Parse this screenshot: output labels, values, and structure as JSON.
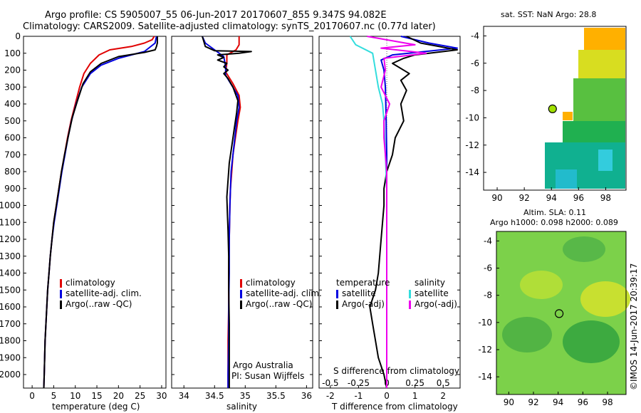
{
  "header": {
    "line1": "Argo profile: CS 5905007_55 06-Jun-2017 20170607_855 9.347S 94.082E",
    "line2": "Climatology: CARS2009. Satellite-adjusted climatology: synTS_20170607.nc (0.77d later)"
  },
  "legend_main": [
    "climatology",
    "satellite-adj. clim.",
    "Argo(..raw -QC)"
  ],
  "legend_diff": {
    "temperature_title": "temperature",
    "salinity_title": "salinity",
    "items": [
      "satellite",
      "Argo(-adj)"
    ]
  },
  "credits": {
    "line1": "Argo Australia",
    "line2": "PI: Susan Wijffels"
  },
  "diff_top_label": "S difference from climatology",
  "map_titles": {
    "sst": "sat. SST: NaN Argo: 28.8",
    "sla1": "Altim. SLA: 0.11",
    "sla2": "Argo h1000: 0.098 h2000: 0.089"
  },
  "watermark": "©IMOS 14-Jun-2017 20:39:17",
  "colors": {
    "climatology": "#e00000",
    "satellite": "#0000e0",
    "argo": "#000000",
    "satellite_diff_s": "#33dddd",
    "argo_diff_s": "#ee00ee"
  },
  "chart_data": [
    {
      "type": "line",
      "xlabel": "temperature (deg C)",
      "ylabel": "",
      "xlim": [
        -2,
        31
      ],
      "ylim": [
        2080,
        0
      ],
      "xticks": [
        0,
        5,
        10,
        15,
        20,
        25,
        30
      ],
      "yticks": [
        0,
        100,
        200,
        300,
        400,
        500,
        600,
        700,
        800,
        900,
        1000,
        1100,
        1200,
        1300,
        1400,
        1500,
        1600,
        1700,
        1800,
        1900,
        2000
      ],
      "series": [
        {
          "name": "climatology",
          "color": "#e00000",
          "points": [
            [
              28.3,
              0
            ],
            [
              27.8,
              20
            ],
            [
              26,
              40
            ],
            [
              23,
              60
            ],
            [
              18,
              80
            ],
            [
              15.5,
              110
            ],
            [
              13.5,
              160
            ],
            [
              12,
              220
            ],
            [
              11,
              300
            ],
            [
              10,
              400
            ],
            [
              9,
              500
            ],
            [
              8.2,
              600
            ],
            [
              7.5,
              700
            ],
            [
              6.8,
              800
            ],
            [
              6.2,
              900
            ],
            [
              5.6,
              1000
            ],
            [
              5,
              1100
            ],
            [
              4.6,
              1200
            ],
            [
              4.2,
              1300
            ],
            [
              3.9,
              1400
            ],
            [
              3.6,
              1500
            ],
            [
              3.4,
              1600
            ],
            [
              3.2,
              1700
            ],
            [
              3,
              1800
            ],
            [
              2.9,
              1900
            ],
            [
              2.8,
              2000
            ],
            [
              2.7,
              2080
            ]
          ]
        },
        {
          "name": "satellite-adj. clim.",
          "color": "#0000e0",
          "points": [
            [
              28.8,
              0
            ],
            [
              28.5,
              40
            ],
            [
              26,
              90
            ],
            [
              20,
              130
            ],
            [
              16,
              170
            ],
            [
              13.5,
              220
            ],
            [
              11.5,
              300
            ],
            [
              10.2,
              400
            ],
            [
              9.1,
              500
            ],
            [
              8.3,
              600
            ],
            [
              7.6,
              700
            ],
            [
              6.9,
              800
            ],
            [
              6.3,
              900
            ],
            [
              5.7,
              1000
            ],
            [
              5.1,
              1100
            ],
            [
              4.6,
              1200
            ],
            [
              4.2,
              1300
            ],
            [
              3.9,
              1400
            ],
            [
              3.6,
              1500
            ],
            [
              3.4,
              1600
            ],
            [
              3.2,
              1700
            ],
            [
              3,
              1800
            ],
            [
              2.9,
              1900
            ],
            [
              2.8,
              2000
            ],
            [
              2.7,
              2080
            ]
          ]
        },
        {
          "name": "Argo(..raw -QC)",
          "color": "#000000",
          "points": [
            [
              29,
              0
            ],
            [
              29,
              40
            ],
            [
              28.8,
              60
            ],
            [
              28.5,
              80
            ],
            [
              26,
              95
            ],
            [
              20,
              120
            ],
            [
              16,
              160
            ],
            [
              13.5,
              210
            ],
            [
              11.8,
              280
            ],
            [
              10.5,
              380
            ],
            [
              9.3,
              480
            ],
            [
              8.3,
              600
            ],
            [
              7.5,
              700
            ],
            [
              6.8,
              800
            ],
            [
              6.2,
              900
            ],
            [
              5.6,
              1000
            ],
            [
              5,
              1100
            ],
            [
              4.6,
              1200
            ],
            [
              4.2,
              1300
            ],
            [
              3.9,
              1400
            ],
            [
              3.6,
              1500
            ],
            [
              3.4,
              1600
            ],
            [
              3.2,
              1700
            ],
            [
              3,
              1800
            ],
            [
              2.9,
              1900
            ],
            [
              2.8,
              2000
            ],
            [
              2.7,
              2080
            ]
          ]
        }
      ]
    },
    {
      "type": "line",
      "xlabel": "salinity",
      "ylabel": "",
      "xlim": [
        33.8,
        36.1
      ],
      "ylim": [
        2080,
        0
      ],
      "xticks": [
        34,
        34.5,
        35,
        35.5,
        36
      ],
      "xticklabels": [
        "34",
        "34.5",
        "35",
        "35.5",
        "36"
      ],
      "series": [
        {
          "name": "climatology",
          "color": "#e00000",
          "points": [
            [
              34.9,
              0
            ],
            [
              34.9,
              50
            ],
            [
              34.85,
              80
            ],
            [
              34.7,
              110
            ],
            [
              34.7,
              160
            ],
            [
              34.68,
              210
            ],
            [
              34.8,
              280
            ],
            [
              34.9,
              350
            ],
            [
              34.92,
              420
            ],
            [
              34.88,
              500
            ],
            [
              34.84,
              600
            ],
            [
              34.8,
              700
            ],
            [
              34.78,
              800
            ],
            [
              34.76,
              900
            ],
            [
              34.75,
              1000
            ],
            [
              34.74,
              1200
            ],
            [
              34.73,
              1400
            ],
            [
              34.73,
              1600
            ],
            [
              34.72,
              1800
            ],
            [
              34.72,
              2000
            ],
            [
              34.72,
              2080
            ]
          ]
        },
        {
          "name": "satellite-adj. clim.",
          "color": "#0000e0",
          "points": [
            [
              34.3,
              0
            ],
            [
              34.35,
              40
            ],
            [
              34.5,
              80
            ],
            [
              34.65,
              120
            ],
            [
              34.68,
              180
            ],
            [
              34.68,
              230
            ],
            [
              34.78,
              290
            ],
            [
              34.88,
              350
            ],
            [
              34.9,
              420
            ],
            [
              34.86,
              500
            ],
            [
              34.83,
              600
            ],
            [
              34.8,
              700
            ],
            [
              34.77,
              800
            ],
            [
              34.76,
              900
            ],
            [
              34.75,
              1000
            ],
            [
              34.74,
              1200
            ],
            [
              34.74,
              1400
            ],
            [
              34.73,
              1600
            ],
            [
              34.73,
              1800
            ],
            [
              34.72,
              2000
            ],
            [
              34.72,
              2080
            ]
          ]
        },
        {
          "name": "Argo(..raw -QC)",
          "color": "#000000",
          "points": [
            [
              34.3,
              0
            ],
            [
              34.35,
              60
            ],
            [
              34.5,
              85
            ],
            [
              35.1,
              90
            ],
            [
              34.9,
              100
            ],
            [
              34.55,
              110
            ],
            [
              34.65,
              125
            ],
            [
              34.55,
              140
            ],
            [
              34.7,
              160
            ],
            [
              34.65,
              180
            ],
            [
              34.72,
              200
            ],
            [
              34.65,
              220
            ],
            [
              34.72,
              250
            ],
            [
              34.8,
              300
            ],
            [
              34.88,
              380
            ],
            [
              34.86,
              450
            ],
            [
              34.82,
              550
            ],
            [
              34.78,
              650
            ],
            [
              34.74,
              750
            ],
            [
              34.72,
              850
            ],
            [
              34.7,
              950
            ],
            [
              34.71,
              1050
            ],
            [
              34.72,
              1150
            ],
            [
              34.73,
              1300
            ],
            [
              34.73,
              1500
            ],
            [
              34.74,
              1700
            ],
            [
              34.74,
              1900
            ],
            [
              34.74,
              2080
            ]
          ]
        }
      ]
    },
    {
      "type": "line",
      "xlabel": "T difference from climatology",
      "ylabel": "",
      "xlim": [
        -2.4,
        2.6
      ],
      "ylim": [
        2080,
        0
      ],
      "xticks": [
        -2,
        -1,
        0,
        1,
        2
      ],
      "xticklabels_top": [
        "-0.5",
        "-0.25",
        "0",
        "0.25",
        "0.5"
      ],
      "series": [
        {
          "name": "temperature satellite",
          "color": "#0000e0",
          "points": [
            [
              0.5,
              0
            ],
            [
              1.5,
              40
            ],
            [
              2.5,
              70
            ],
            [
              0.2,
              110
            ],
            [
              -0.2,
              140
            ],
            [
              -0.1,
              200
            ],
            [
              -0.05,
              300
            ],
            [
              -0.02,
              500
            ],
            [
              0,
              700
            ],
            [
              0,
              900
            ],
            [
              0,
              1100
            ],
            [
              0,
              1300
            ],
            [
              0,
              1500
            ],
            [
              0,
              1700
            ],
            [
              0,
              1900
            ],
            [
              0,
              2080
            ]
          ]
        },
        {
          "name": "temperature Argo(-adj)",
          "color": "#000000",
          "points": [
            [
              0.7,
              0
            ],
            [
              1.2,
              40
            ],
            [
              2.5,
              80
            ],
            [
              1,
              110
            ],
            [
              0.6,
              130
            ],
            [
              0.2,
              160
            ],
            [
              0.8,
              220
            ],
            [
              0.5,
              260
            ],
            [
              0.7,
              320
            ],
            [
              0.5,
              400
            ],
            [
              0.6,
              500
            ],
            [
              0.3,
              600
            ],
            [
              0.2,
              700
            ],
            [
              0,
              800
            ],
            [
              -0.1,
              900
            ],
            [
              -0.1,
              1000
            ],
            [
              -0.2,
              1200
            ],
            [
              -0.3,
              1400
            ],
            [
              -0.4,
              1500
            ],
            [
              -0.6,
              1600
            ],
            [
              -0.5,
              1700
            ],
            [
              -0.4,
              1800
            ],
            [
              -0.3,
              1900
            ],
            [
              -0.1,
              2000
            ],
            [
              0,
              2080
            ]
          ]
        },
        {
          "name": "salinity satellite",
          "color": "#33dddd",
          "points": [
            [
              -1.3,
              0
            ],
            [
              -1.1,
              50
            ],
            [
              -0.5,
              100
            ],
            [
              -0.4,
              200
            ],
            [
              -0.3,
              300
            ],
            [
              -0.15,
              400
            ],
            [
              -0.1,
              500
            ],
            [
              -0.05,
              700
            ],
            [
              0,
              900
            ],
            [
              0,
              1100
            ],
            [
              0,
              1400
            ],
            [
              0,
              1700
            ],
            [
              0,
              2080
            ]
          ]
        },
        {
          "name": "salinity Argo(-adj)",
          "color": "#ee00ee",
          "points": [
            [
              -0.7,
              0
            ],
            [
              1,
              50
            ],
            [
              -0.2,
              70
            ],
            [
              1.4,
              100
            ],
            [
              -0.1,
              130
            ],
            [
              -0.05,
              200
            ],
            [
              -0.2,
              300
            ],
            [
              0.1,
              400
            ],
            [
              -0.1,
              500
            ],
            [
              -0.1,
              600
            ],
            [
              -0.05,
              700
            ],
            [
              0,
              800
            ],
            [
              0,
              1000
            ],
            [
              0,
              1200
            ],
            [
              0,
              1500
            ],
            [
              0,
              1800
            ],
            [
              0,
              2080
            ]
          ]
        }
      ]
    }
  ],
  "maps": {
    "xticks": [
      90,
      92,
      94,
      96,
      98
    ],
    "yticks": [
      -4,
      -6,
      -8,
      -10,
      -12,
      -14
    ],
    "xlim": [
      89,
      99.5
    ],
    "ylim": [
      -15.3,
      -3.3
    ],
    "argo_position": {
      "lon": 94.082,
      "lat": -9.347
    }
  }
}
